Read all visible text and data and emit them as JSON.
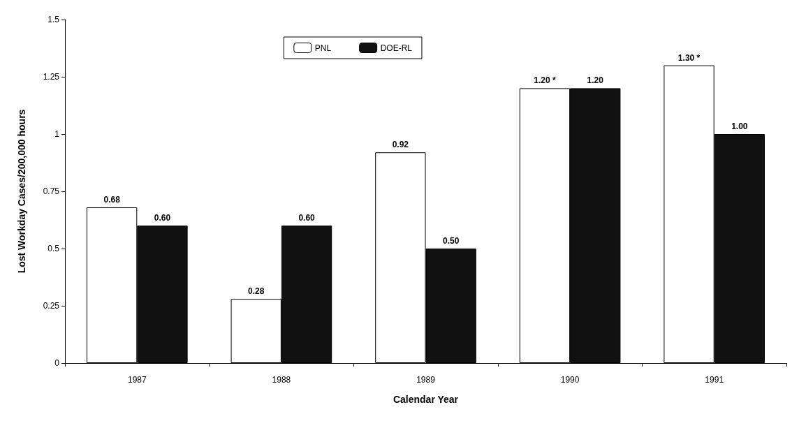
{
  "chart_data": {
    "type": "bar",
    "xlabel": "Calendar Year",
    "ylabel": "Lost Workday Cases/200,000 hours",
    "categories": [
      "1987",
      "1988",
      "1989",
      "1990",
      "1991"
    ],
    "series": [
      {
        "name": "PNL",
        "color": "#ffffff",
        "values": [
          0.68,
          0.28,
          0.92,
          1.2,
          1.3
        ],
        "value_labels": [
          "0.68",
          "0.28",
          "0.92",
          "1.20 *",
          "1.30 *"
        ]
      },
      {
        "name": "DOE-RL",
        "color": "#111111",
        "values": [
          0.6,
          0.6,
          0.5,
          1.2,
          1.0
        ],
        "value_labels": [
          "0.60",
          "0.60",
          "0.50",
          "1.20",
          "1.00"
        ]
      }
    ],
    "ylim": [
      0,
      1.5
    ],
    "yticks": [
      0,
      0.25,
      0.5,
      0.75,
      1,
      1.25,
      1.5
    ],
    "grid": false,
    "legend": "top"
  }
}
